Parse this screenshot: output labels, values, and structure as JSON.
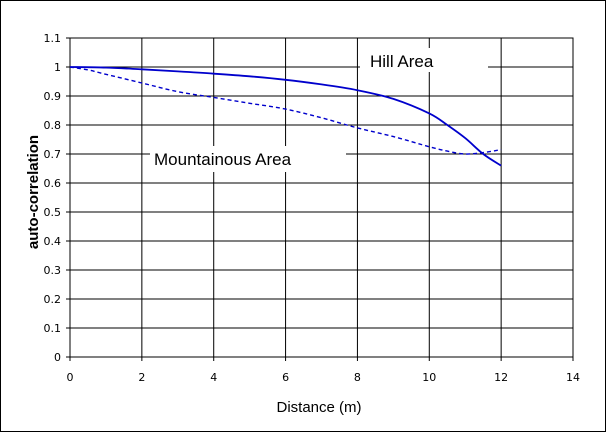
{
  "chart_data": {
    "type": "line",
    "title": "",
    "xlabel": "Distance (m)",
    "ylabel": "auto-correlation",
    "xlim": [
      0,
      14
    ],
    "ylim": [
      0,
      1.1
    ],
    "x_ticks": [
      0,
      2,
      4,
      6,
      8,
      10,
      12,
      14
    ],
    "y_ticks": [
      0,
      0.1,
      0.2,
      0.3,
      0.4,
      0.5,
      0.6,
      0.7,
      0.8,
      0.9,
      1,
      1.1
    ],
    "grid": true,
    "legend": "none",
    "series": [
      {
        "name": "Hill Area",
        "style": "solid",
        "color": "#0000cc",
        "x": [
          0,
          1,
          2,
          3,
          4,
          5,
          6,
          7,
          8,
          9,
          10,
          10.5,
          11,
          11.5,
          12
        ],
        "y": [
          1.0,
          0.998,
          0.992,
          0.985,
          0.977,
          0.968,
          0.956,
          0.94,
          0.92,
          0.89,
          0.84,
          0.8,
          0.755,
          0.7,
          0.66
        ]
      },
      {
        "name": "Mountainous Area",
        "style": "dashed",
        "color": "#0000cc",
        "x": [
          0,
          0.5,
          1,
          2,
          3,
          4,
          5,
          6,
          7,
          8,
          9,
          10,
          10.5,
          11,
          11.5,
          12
        ],
        "y": [
          1.0,
          0.99,
          0.975,
          0.945,
          0.915,
          0.895,
          0.875,
          0.855,
          0.825,
          0.79,
          0.76,
          0.725,
          0.71,
          0.7,
          0.705,
          0.715
        ]
      }
    ],
    "annotations": [
      {
        "text": "Hill Area",
        "series": "Hill Area"
      },
      {
        "text": "Mountainous Area",
        "series": "Mountainous Area"
      }
    ]
  }
}
